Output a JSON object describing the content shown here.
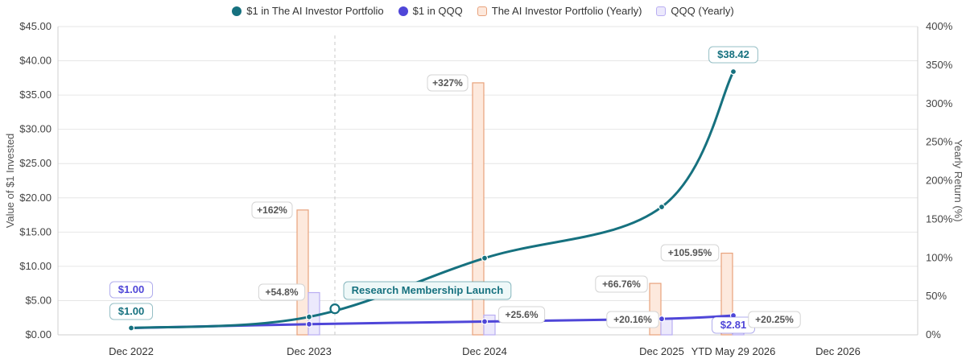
{
  "chart_data": {
    "type": "line",
    "x_categories": [
      "Dec 2022",
      "Dec 2023",
      "Dec 2024",
      "Dec 2025",
      "YTD May 29 2026",
      "Dec 2026"
    ],
    "ylabel_left": "Value of $1 Invested",
    "ylabel_right": "Yearly Return (%)",
    "ylim_left": [
      0,
      45
    ],
    "ylim_right": [
      0,
      400
    ],
    "yticks_left": [
      "$0.00",
      "$5.00",
      "$10.00",
      "$15.00",
      "$20.00",
      "$25.00",
      "$30.00",
      "$35.00",
      "$40.00",
      "$45.00"
    ],
    "yticks_right": [
      "0%",
      "50%",
      "100%",
      "150%",
      "200%",
      "250%",
      "300%",
      "350%",
      "400%"
    ],
    "grid": true,
    "legend_position": "top-center",
    "series": [
      {
        "name": "$1 in The AI Investor Portfolio",
        "type": "line",
        "color": "#16717f",
        "points": [
          {
            "x": "Dec 2022",
            "y": 1.0
          },
          {
            "x": "Dec 2023",
            "y": 2.62
          },
          {
            "x": "Dec 2024",
            "y": 11.2
          },
          {
            "x": "Dec 2025",
            "y": 18.67
          },
          {
            "x": "YTD May 29 2026",
            "y": 38.42
          }
        ]
      },
      {
        "name": "$1 in QQQ",
        "type": "line",
        "color": "#4f46d8",
        "points": [
          {
            "x": "Dec 2022",
            "y": 1.0
          },
          {
            "x": "Dec 2023",
            "y": 1.55
          },
          {
            "x": "Dec 2024",
            "y": 1.94
          },
          {
            "x": "Dec 2025",
            "y": 2.33
          },
          {
            "x": "YTD May 29 2026",
            "y": 2.81
          }
        ]
      },
      {
        "name": "The AI Investor Portfolio (Yearly)",
        "type": "bar",
        "color": "#e8a27c",
        "fill": "#fde9dd",
        "values": [
          {
            "x": "Dec 2023",
            "y": 162,
            "label": "+162%"
          },
          {
            "x": "Dec 2024",
            "y": 327,
            "label": "+327%"
          },
          {
            "x": "Dec 2025",
            "y": 66.76,
            "label": "+66.76%"
          },
          {
            "x": "YTD May 29 2026",
            "y": 105.95,
            "label": "+105.95%"
          }
        ]
      },
      {
        "name": "QQQ (Yearly)",
        "type": "bar",
        "color": "#b9aef2",
        "fill": "#ece9fc",
        "values": [
          {
            "x": "Dec 2023",
            "y": 54.8,
            "label": "+54.8%"
          },
          {
            "x": "Dec 2024",
            "y": 25.6,
            "label": "+25.6%"
          },
          {
            "x": "Dec 2025",
            "y": 20.16,
            "label": "+20.16%"
          },
          {
            "x": "YTD May 29 2026",
            "y": 20.25,
            "label": "+20.25%"
          }
        ]
      }
    ],
    "value_labels": {
      "portfolio_start": "$1.00",
      "qqq_start": "$1.00",
      "portfolio_end": "$38.42",
      "qqq_end": "$2.81"
    },
    "annotation": {
      "label": "Research Membership Launch",
      "x": "Jan 2024",
      "y": 3.8
    }
  }
}
